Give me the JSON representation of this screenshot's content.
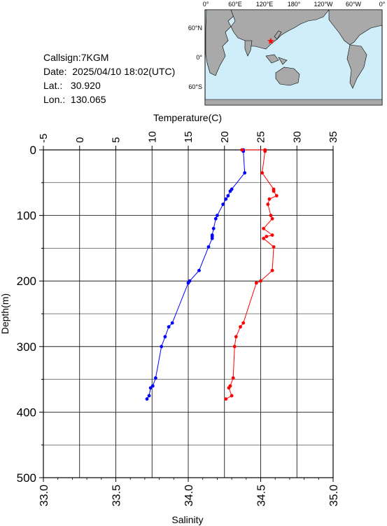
{
  "station": {
    "callsign": "Callsign:7KGM",
    "date": "Date:  2025/04/10 18:02(UTC)",
    "lat": "Lat.:   30.920",
    "lon": "Lon.:  130.065"
  },
  "map": {
    "top_labels": [
      "0°",
      "60°E",
      "120°E",
      "180°",
      "120°W",
      "60°W",
      "0°"
    ],
    "left_labels": [
      "60°N",
      "0°",
      "60°S"
    ],
    "ocean_color": "#cfeefa",
    "land_color": "#a9a9a9",
    "marker_icon": "star-icon",
    "marker_color": "#ff0000"
  },
  "chart_data": {
    "type": "line",
    "x_top_label": "Temperature(C)",
    "x_bottom_label": "Salinity",
    "y_label": "Depth(m)",
    "temperature_ticks": [
      -5,
      0,
      5,
      10,
      15,
      20,
      25,
      30,
      35
    ],
    "salinity_ticks": [
      "33.0",
      "33.5",
      "34.0",
      "34.5",
      "35.0"
    ],
    "depth_ticks": [
      0,
      100,
      200,
      300,
      400,
      500
    ],
    "temperature_range": [
      -5,
      35
    ],
    "salinity_range": [
      33.0,
      35.0
    ],
    "depth_range": [
      0,
      500
    ],
    "series": [
      {
        "color": "#0000ff",
        "axis": "temperature",
        "points": [
          [
            22.6,
            0
          ],
          [
            22.6,
            2
          ],
          [
            22.8,
            35
          ],
          [
            21.0,
            60
          ],
          [
            20.8,
            63
          ],
          [
            20.5,
            70
          ],
          [
            20.2,
            75
          ],
          [
            19.8,
            83
          ],
          [
            19.0,
            100
          ],
          [
            18.8,
            105
          ],
          [
            18.5,
            120
          ],
          [
            18.3,
            130
          ],
          [
            18.3,
            132
          ],
          [
            18.3,
            135
          ],
          [
            17.8,
            148
          ],
          [
            16.5,
            184
          ],
          [
            15.2,
            200
          ],
          [
            15.0,
            203
          ],
          [
            12.8,
            264
          ],
          [
            12.3,
            270
          ],
          [
            11.8,
            285
          ],
          [
            11.3,
            300
          ],
          [
            10.5,
            348
          ],
          [
            10.1,
            360
          ],
          [
            9.8,
            363
          ],
          [
            9.6,
            375
          ],
          [
            9.3,
            380
          ]
        ]
      },
      {
        "color": "#ff0000",
        "axis": "salinity",
        "points": [
          [
            34.37,
            0
          ],
          [
            34.53,
            0
          ],
          [
            34.53,
            2
          ],
          [
            34.51,
            35
          ],
          [
            34.59,
            60
          ],
          [
            34.59,
            63
          ],
          [
            34.61,
            70
          ],
          [
            34.56,
            75
          ],
          [
            34.55,
            83
          ],
          [
            34.57,
            100
          ],
          [
            34.58,
            105
          ],
          [
            34.52,
            120
          ],
          [
            34.58,
            130
          ],
          [
            34.54,
            132
          ],
          [
            34.52,
            135
          ],
          [
            34.59,
            148
          ],
          [
            34.58,
            184
          ],
          [
            34.5,
            200
          ],
          [
            34.47,
            203
          ],
          [
            34.38,
            264
          ],
          [
            34.36,
            270
          ],
          [
            34.33,
            285
          ],
          [
            34.32,
            300
          ],
          [
            34.31,
            348
          ],
          [
            34.29,
            360
          ],
          [
            34.28,
            363
          ],
          [
            34.3,
            375
          ],
          [
            34.26,
            380
          ]
        ]
      }
    ]
  }
}
